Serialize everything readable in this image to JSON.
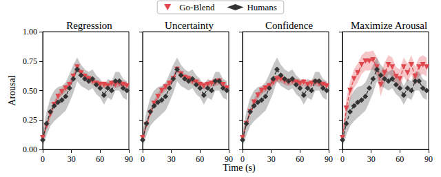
{
  "chart_data": {
    "type": "line",
    "xlabel": "Time (s)",
    "ylabel": "Arousal",
    "legend": "top",
    "xlim": [
      0,
      90
    ],
    "xticks": [
      0,
      30,
      60,
      90
    ],
    "ylim": [
      0,
      1
    ],
    "yticks": [
      {
        "value": 0,
        "label": "0.00"
      },
      {
        "value": 0.25,
        "label": "0.25"
      },
      {
        "value": 0.5,
        "label": "0.50"
      },
      {
        "value": 0.75,
        "label": "0.75"
      },
      {
        "value": 1,
        "label": "1.00"
      }
    ],
    "x": [
      0,
      4,
      8,
      12,
      16,
      20,
      24,
      28,
      32,
      36,
      40,
      44,
      48,
      52,
      56,
      60,
      64,
      68,
      72,
      76,
      80,
      84,
      88
    ],
    "panels": [
      {
        "title": "Regression",
        "series": [
          {
            "name": "Go-Blend",
            "color": "#e0474c",
            "marker": "triangle_down",
            "line_style": "dashed",
            "values": [
              0.1,
              0.2,
              0.3,
              0.38,
              0.45,
              0.49,
              0.52,
              0.55,
              0.62,
              0.7,
              0.65,
              0.62,
              0.6,
              0.58,
              0.56,
              0.55,
              0.55,
              0.54,
              0.56,
              0.55,
              0.56,
              0.55,
              0.54
            ],
            "lower": [
              0.07,
              0.17,
              0.27,
              0.35,
              0.42,
              0.46,
              0.49,
              0.52,
              0.59,
              0.67,
              0.62,
              0.59,
              0.57,
              0.55,
              0.53,
              0.52,
              0.52,
              0.51,
              0.53,
              0.52,
              0.53,
              0.52,
              0.51
            ],
            "upper": [
              0.13,
              0.23,
              0.33,
              0.41,
              0.48,
              0.52,
              0.55,
              0.58,
              0.65,
              0.73,
              0.68,
              0.65,
              0.63,
              0.61,
              0.59,
              0.58,
              0.58,
              0.57,
              0.59,
              0.58,
              0.59,
              0.58,
              0.57
            ]
          },
          {
            "name": "Humans",
            "color": "#333333",
            "marker": "diamond",
            "line_style": "dashed",
            "values": [
              0.08,
              0.22,
              0.32,
              0.37,
              0.4,
              0.42,
              0.45,
              0.52,
              0.6,
              0.68,
              0.63,
              0.6,
              0.58,
              0.6,
              0.55,
              0.52,
              0.46,
              0.52,
              0.5,
              0.58,
              0.58,
              0.52,
              0.5
            ],
            "lower": [
              0.02,
              0.12,
              0.2,
              0.24,
              0.27,
              0.3,
              0.33,
              0.4,
              0.48,
              0.58,
              0.54,
              0.52,
              0.5,
              0.52,
              0.47,
              0.44,
              0.38,
              0.44,
              0.42,
              0.5,
              0.5,
              0.44,
              0.42
            ],
            "upper": [
              0.14,
              0.32,
              0.44,
              0.5,
              0.53,
              0.54,
              0.57,
              0.64,
              0.72,
              0.78,
              0.72,
              0.68,
              0.66,
              0.68,
              0.63,
              0.6,
              0.54,
              0.6,
              0.58,
              0.66,
              0.66,
              0.6,
              0.58
            ]
          }
        ]
      },
      {
        "title": "Uncertainty",
        "series": [
          {
            "name": "Go-Blend",
            "color": "#e0474c",
            "marker": "triangle_down",
            "line_style": "dashed",
            "values": [
              0.1,
              0.21,
              0.31,
              0.39,
              0.45,
              0.5,
              0.53,
              0.56,
              0.6,
              0.68,
              0.64,
              0.61,
              0.6,
              0.58,
              0.57,
              0.55,
              0.54,
              0.55,
              0.56,
              0.57,
              0.58,
              0.55,
              0.52
            ],
            "lower": [
              0.07,
              0.18,
              0.28,
              0.36,
              0.42,
              0.47,
              0.5,
              0.53,
              0.57,
              0.65,
              0.61,
              0.58,
              0.57,
              0.55,
              0.54,
              0.52,
              0.51,
              0.52,
              0.53,
              0.54,
              0.55,
              0.52,
              0.49
            ],
            "upper": [
              0.13,
              0.24,
              0.34,
              0.42,
              0.48,
              0.53,
              0.56,
              0.59,
              0.63,
              0.71,
              0.67,
              0.64,
              0.63,
              0.61,
              0.6,
              0.58,
              0.57,
              0.58,
              0.59,
              0.6,
              0.61,
              0.58,
              0.55
            ]
          },
          {
            "name": "Humans",
            "color": "#333333",
            "marker": "diamond",
            "line_style": "dashed",
            "values": [
              0.08,
              0.22,
              0.32,
              0.37,
              0.4,
              0.42,
              0.45,
              0.52,
              0.6,
              0.68,
              0.63,
              0.6,
              0.58,
              0.6,
              0.55,
              0.52,
              0.46,
              0.52,
              0.5,
              0.58,
              0.58,
              0.52,
              0.5
            ],
            "lower": [
              0.02,
              0.12,
              0.2,
              0.24,
              0.27,
              0.3,
              0.33,
              0.4,
              0.48,
              0.58,
              0.54,
              0.52,
              0.5,
              0.52,
              0.47,
              0.44,
              0.38,
              0.44,
              0.42,
              0.5,
              0.5,
              0.44,
              0.42
            ],
            "upper": [
              0.14,
              0.32,
              0.44,
              0.5,
              0.53,
              0.54,
              0.57,
              0.64,
              0.72,
              0.78,
              0.72,
              0.68,
              0.66,
              0.68,
              0.63,
              0.6,
              0.54,
              0.6,
              0.58,
              0.66,
              0.66,
              0.6,
              0.58
            ]
          }
        ]
      },
      {
        "title": "Confidence",
        "series": [
          {
            "name": "Go-Blend",
            "color": "#e0474c",
            "marker": "triangle_down",
            "line_style": "dashed",
            "values": [
              0.1,
              0.22,
              0.32,
              0.4,
              0.46,
              0.5,
              0.52,
              0.54,
              0.57,
              0.6,
              0.6,
              0.58,
              0.57,
              0.58,
              0.57,
              0.56,
              0.57,
              0.55,
              0.56,
              0.57,
              0.56,
              0.55,
              0.54
            ],
            "lower": [
              0.07,
              0.19,
              0.29,
              0.37,
              0.43,
              0.47,
              0.49,
              0.51,
              0.54,
              0.57,
              0.57,
              0.55,
              0.54,
              0.55,
              0.54,
              0.53,
              0.54,
              0.52,
              0.53,
              0.54,
              0.53,
              0.52,
              0.51
            ],
            "upper": [
              0.13,
              0.25,
              0.35,
              0.43,
              0.49,
              0.53,
              0.55,
              0.57,
              0.6,
              0.63,
              0.63,
              0.61,
              0.6,
              0.61,
              0.6,
              0.59,
              0.6,
              0.58,
              0.59,
              0.6,
              0.59,
              0.58,
              0.57
            ]
          },
          {
            "name": "Humans",
            "color": "#333333",
            "marker": "diamond",
            "line_style": "dashed",
            "values": [
              0.08,
              0.22,
              0.32,
              0.37,
              0.4,
              0.42,
              0.45,
              0.52,
              0.6,
              0.68,
              0.63,
              0.6,
              0.58,
              0.6,
              0.55,
              0.52,
              0.46,
              0.52,
              0.5,
              0.58,
              0.58,
              0.52,
              0.5
            ],
            "lower": [
              0.02,
              0.12,
              0.2,
              0.24,
              0.27,
              0.3,
              0.33,
              0.4,
              0.48,
              0.58,
              0.54,
              0.52,
              0.5,
              0.52,
              0.47,
              0.44,
              0.38,
              0.44,
              0.42,
              0.5,
              0.5,
              0.44,
              0.42
            ],
            "upper": [
              0.14,
              0.32,
              0.44,
              0.5,
              0.53,
              0.54,
              0.57,
              0.64,
              0.72,
              0.78,
              0.72,
              0.68,
              0.66,
              0.68,
              0.63,
              0.6,
              0.54,
              0.6,
              0.58,
              0.66,
              0.66,
              0.6,
              0.58
            ]
          }
        ]
      },
      {
        "title": "Maximize Arousal",
        "series": [
          {
            "name": "Go-Blend",
            "color": "#e0474c",
            "marker": "triangle_down",
            "line_style": "dashed",
            "values": [
              0.1,
              0.35,
              0.5,
              0.6,
              0.65,
              0.72,
              0.75,
              0.75,
              0.76,
              0.7,
              0.55,
              0.65,
              0.72,
              0.7,
              0.62,
              0.6,
              0.7,
              0.65,
              0.72,
              0.62,
              0.7,
              0.72,
              0.7
            ],
            "lower": [
              0.05,
              0.27,
              0.42,
              0.52,
              0.57,
              0.64,
              0.67,
              0.67,
              0.68,
              0.62,
              0.45,
              0.56,
              0.64,
              0.62,
              0.54,
              0.52,
              0.62,
              0.57,
              0.64,
              0.54,
              0.62,
              0.64,
              0.62
            ],
            "upper": [
              0.15,
              0.43,
              0.58,
              0.68,
              0.73,
              0.8,
              0.83,
              0.83,
              0.84,
              0.78,
              0.65,
              0.74,
              0.8,
              0.78,
              0.7,
              0.68,
              0.78,
              0.73,
              0.8,
              0.7,
              0.78,
              0.8,
              0.78
            ]
          },
          {
            "name": "Humans",
            "color": "#333333",
            "marker": "diamond",
            "line_style": "dashed",
            "values": [
              0.08,
              0.22,
              0.32,
              0.37,
              0.4,
              0.42,
              0.45,
              0.52,
              0.6,
              0.68,
              0.63,
              0.6,
              0.58,
              0.6,
              0.55,
              0.52,
              0.46,
              0.52,
              0.5,
              0.58,
              0.58,
              0.52,
              0.5
            ],
            "lower": [
              0.02,
              0.12,
              0.2,
              0.24,
              0.27,
              0.3,
              0.33,
              0.4,
              0.48,
              0.58,
              0.54,
              0.52,
              0.5,
              0.52,
              0.47,
              0.44,
              0.38,
              0.44,
              0.42,
              0.5,
              0.5,
              0.44,
              0.42
            ],
            "upper": [
              0.14,
              0.32,
              0.44,
              0.5,
              0.53,
              0.54,
              0.57,
              0.64,
              0.72,
              0.78,
              0.72,
              0.68,
              0.66,
              0.68,
              0.63,
              0.6,
              0.54,
              0.6,
              0.58,
              0.66,
              0.66,
              0.6,
              0.58
            ]
          }
        ]
      }
    ]
  }
}
